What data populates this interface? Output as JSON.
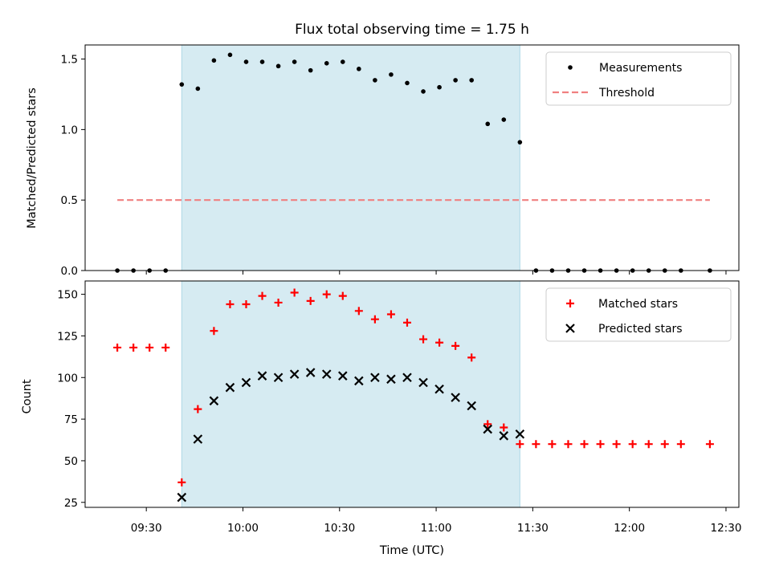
{
  "chart_data": {
    "type": "scatter",
    "title": "Flux total observing time = 1.75 h",
    "xlabel": "Time (UTC)",
    "x_ticks": [
      "09:30",
      "10:00",
      "10:30",
      "11:00",
      "11:30",
      "12:00",
      "12:30"
    ],
    "x_range": [
      "09:11",
      "12:34"
    ],
    "observing_window": {
      "start": "09:41",
      "end": "11:26",
      "color": "#add8e6"
    },
    "panels": [
      {
        "id": "ratio",
        "ylabel": "Matched/Predicted stars",
        "ylim": [
          0,
          1.6
        ],
        "y_ticks": [
          "0.0",
          "0.5",
          "1.0",
          "1.5"
        ],
        "legend_position": "upper right",
        "series": [
          {
            "name": "Measurements",
            "marker": "dot",
            "color": "#000000",
            "points": [
              [
                "09:21",
                0.0
              ],
              [
                "09:26",
                0.0
              ],
              [
                "09:31",
                0.0
              ],
              [
                "09:36",
                0.0
              ],
              [
                "09:41",
                1.32
              ],
              [
                "09:46",
                1.29
              ],
              [
                "09:51",
                1.49
              ],
              [
                "09:56",
                1.53
              ],
              [
                "10:01",
                1.48
              ],
              [
                "10:06",
                1.48
              ],
              [
                "10:11",
                1.45
              ],
              [
                "10:16",
                1.48
              ],
              [
                "10:21",
                1.42
              ],
              [
                "10:26",
                1.47
              ],
              [
                "10:31",
                1.48
              ],
              [
                "10:36",
                1.43
              ],
              [
                "10:41",
                1.35
              ],
              [
                "10:46",
                1.39
              ],
              [
                "10:51",
                1.33
              ],
              [
                "10:56",
                1.27
              ],
              [
                "11:01",
                1.3
              ],
              [
                "11:06",
                1.35
              ],
              [
                "11:11",
                1.35
              ],
              [
                "11:16",
                1.04
              ],
              [
                "11:21",
                1.07
              ],
              [
                "11:26",
                0.91
              ],
              [
                "11:31",
                0.0
              ],
              [
                "11:36",
                0.0
              ],
              [
                "11:41",
                0.0
              ],
              [
                "11:46",
                0.0
              ],
              [
                "11:51",
                0.0
              ],
              [
                "11:56",
                0.0
              ],
              [
                "12:01",
                0.0
              ],
              [
                "12:06",
                0.0
              ],
              [
                "12:11",
                0.0
              ],
              [
                "12:16",
                0.0
              ],
              [
                "12:25",
                0.0
              ]
            ]
          },
          {
            "name": "Threshold",
            "marker": "dashed-line",
            "color": "#f08080",
            "points": [
              [
                "09:21",
                0.5
              ],
              [
                "12:25",
                0.5
              ]
            ]
          }
        ]
      },
      {
        "id": "count",
        "ylabel": "Count",
        "ylim": [
          22,
          158
        ],
        "y_ticks": [
          "25",
          "50",
          "75",
          "100",
          "125",
          "150"
        ],
        "legend_position": "upper right",
        "series": [
          {
            "name": "Matched stars",
            "marker": "plus",
            "color": "#ff0000",
            "points": [
              [
                "09:21",
                118
              ],
              [
                "09:26",
                118
              ],
              [
                "09:31",
                118
              ],
              [
                "09:36",
                118
              ],
              [
                "09:41",
                37
              ],
              [
                "09:46",
                81
              ],
              [
                "09:51",
                128
              ],
              [
                "09:56",
                144
              ],
              [
                "10:01",
                144
              ],
              [
                "10:06",
                149
              ],
              [
                "10:11",
                145
              ],
              [
                "10:16",
                151
              ],
              [
                "10:21",
                146
              ],
              [
                "10:26",
                150
              ],
              [
                "10:31",
                149
              ],
              [
                "10:36",
                140
              ],
              [
                "10:41",
                135
              ],
              [
                "10:46",
                138
              ],
              [
                "10:51",
                133
              ],
              [
                "10:56",
                123
              ],
              [
                "11:01",
                121
              ],
              [
                "11:06",
                119
              ],
              [
                "11:11",
                112
              ],
              [
                "11:16",
                72
              ],
              [
                "11:21",
                70
              ],
              [
                "11:26",
                60
              ],
              [
                "11:31",
                60
              ],
              [
                "11:36",
                60
              ],
              [
                "11:41",
                60
              ],
              [
                "11:46",
                60
              ],
              [
                "11:51",
                60
              ],
              [
                "11:56",
                60
              ],
              [
                "12:01",
                60
              ],
              [
                "12:06",
                60
              ],
              [
                "12:11",
                60
              ],
              [
                "12:16",
                60
              ],
              [
                "12:25",
                60
              ]
            ]
          },
          {
            "name": "Predicted stars",
            "marker": "x",
            "color": "#000000",
            "points": [
              [
                "09:41",
                28
              ],
              [
                "09:46",
                63
              ],
              [
                "09:51",
                86
              ],
              [
                "09:56",
                94
              ],
              [
                "10:01",
                97
              ],
              [
                "10:06",
                101
              ],
              [
                "10:11",
                100
              ],
              [
                "10:16",
                102
              ],
              [
                "10:21",
                103
              ],
              [
                "10:26",
                102
              ],
              [
                "10:31",
                101
              ],
              [
                "10:36",
                98
              ],
              [
                "10:41",
                100
              ],
              [
                "10:46",
                99
              ],
              [
                "10:51",
                100
              ],
              [
                "10:56",
                97
              ],
              [
                "11:01",
                93
              ],
              [
                "11:06",
                88
              ],
              [
                "11:11",
                83
              ],
              [
                "11:16",
                69
              ],
              [
                "11:21",
                65
              ],
              [
                "11:26",
                66
              ]
            ]
          }
        ]
      }
    ]
  }
}
